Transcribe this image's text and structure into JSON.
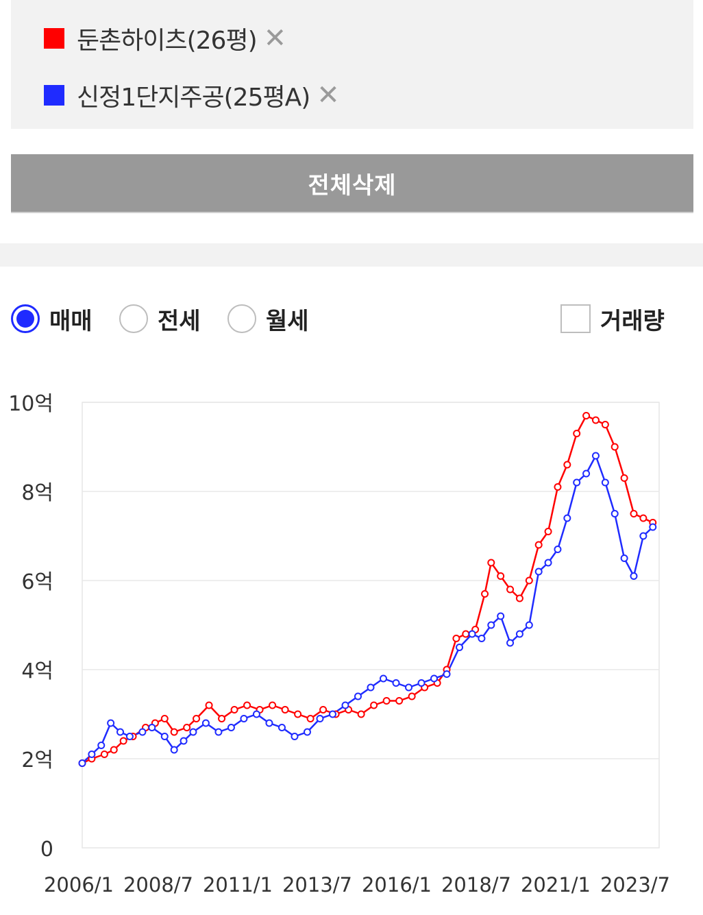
{
  "compare_list": {
    "items": [
      {
        "name": "둔촌하이츠(26평)",
        "color": "#ff0000",
        "remove_icon": "close-icon"
      },
      {
        "name": "신정1단지주공(25평A)",
        "color": "#1f2bff",
        "remove_icon": "close-icon"
      }
    ],
    "delete_all_label": "전체삭제"
  },
  "options": {
    "trade_types": [
      {
        "label": "매매",
        "selected": true
      },
      {
        "label": "전세",
        "selected": false
      },
      {
        "label": "월세",
        "selected": false
      }
    ],
    "volume": {
      "label": "거래량",
      "checked": false
    }
  },
  "chart_data": {
    "type": "line",
    "x_ticks": [
      "2006/1",
      "2008/7",
      "2011/1",
      "2013/7",
      "2016/1",
      "2018/7",
      "2021/1",
      "2023/7"
    ],
    "y_ticks": [
      "0",
      "2억",
      "4억",
      "6억",
      "8억",
      "10억"
    ],
    "ylim": [
      0,
      10
    ],
    "xlim": [
      2006.0,
      2024.2
    ],
    "grid": true,
    "series": [
      {
        "name": "둔촌하이츠(26평)",
        "color": "#ff0000",
        "x": [
          2006.0,
          2006.3,
          2006.7,
          2007.0,
          2007.3,
          2007.6,
          2008.0,
          2008.3,
          2008.6,
          2008.9,
          2009.3,
          2009.6,
          2010.0,
          2010.4,
          2010.8,
          2011.2,
          2011.6,
          2012.0,
          2012.4,
          2012.8,
          2013.2,
          2013.6,
          2014.0,
          2014.4,
          2014.8,
          2015.2,
          2015.6,
          2016.0,
          2016.4,
          2016.8,
          2017.2,
          2017.5,
          2017.8,
          2018.1,
          2018.4,
          2018.7,
          2018.9,
          2019.2,
          2019.5,
          2019.8,
          2020.1,
          2020.4,
          2020.7,
          2021.0,
          2021.3,
          2021.6,
          2021.9,
          2022.2,
          2022.5,
          2022.8,
          2023.1,
          2023.4,
          2023.7,
          2024.0
        ],
        "y": [
          1.9,
          2.0,
          2.1,
          2.2,
          2.4,
          2.5,
          2.7,
          2.8,
          2.9,
          2.6,
          2.7,
          2.9,
          3.2,
          2.9,
          3.1,
          3.2,
          3.1,
          3.2,
          3.1,
          3.0,
          2.9,
          3.1,
          3.0,
          3.1,
          3.0,
          3.2,
          3.3,
          3.3,
          3.4,
          3.6,
          3.7,
          4.0,
          4.7,
          4.8,
          4.9,
          5.7,
          6.4,
          6.1,
          5.8,
          5.6,
          6.0,
          6.8,
          7.1,
          8.1,
          8.6,
          9.3,
          9.7,
          9.6,
          9.5,
          9.0,
          8.3,
          7.5,
          7.4,
          7.3
        ]
      },
      {
        "name": "신정1단지주공(25평A)",
        "color": "#1f2bff",
        "x": [
          2006.0,
          2006.3,
          2006.6,
          2006.9,
          2007.2,
          2007.5,
          2007.9,
          2008.2,
          2008.6,
          2008.9,
          2009.2,
          2009.5,
          2009.9,
          2010.3,
          2010.7,
          2011.1,
          2011.5,
          2011.9,
          2012.3,
          2012.7,
          2013.1,
          2013.5,
          2013.9,
          2014.3,
          2014.7,
          2015.1,
          2015.5,
          2015.9,
          2016.3,
          2016.7,
          2017.1,
          2017.5,
          2017.9,
          2018.3,
          2018.6,
          2018.9,
          2019.2,
          2019.5,
          2019.8,
          2020.1,
          2020.4,
          2020.7,
          2021.0,
          2021.3,
          2021.6,
          2021.9,
          2022.2,
          2022.5,
          2022.8,
          2023.1,
          2023.4,
          2023.7,
          2024.0
        ],
        "y": [
          1.9,
          2.1,
          2.3,
          2.8,
          2.6,
          2.5,
          2.6,
          2.7,
          2.5,
          2.2,
          2.4,
          2.6,
          2.8,
          2.6,
          2.7,
          2.9,
          3.0,
          2.8,
          2.7,
          2.5,
          2.6,
          2.9,
          3.0,
          3.2,
          3.4,
          3.6,
          3.8,
          3.7,
          3.6,
          3.7,
          3.8,
          3.9,
          4.5,
          4.8,
          4.7,
          5.0,
          5.2,
          4.6,
          4.8,
          5.0,
          6.2,
          6.4,
          6.7,
          7.4,
          8.2,
          8.4,
          8.8,
          8.2,
          7.5,
          6.5,
          6.1,
          7.0,
          7.2
        ]
      }
    ]
  }
}
